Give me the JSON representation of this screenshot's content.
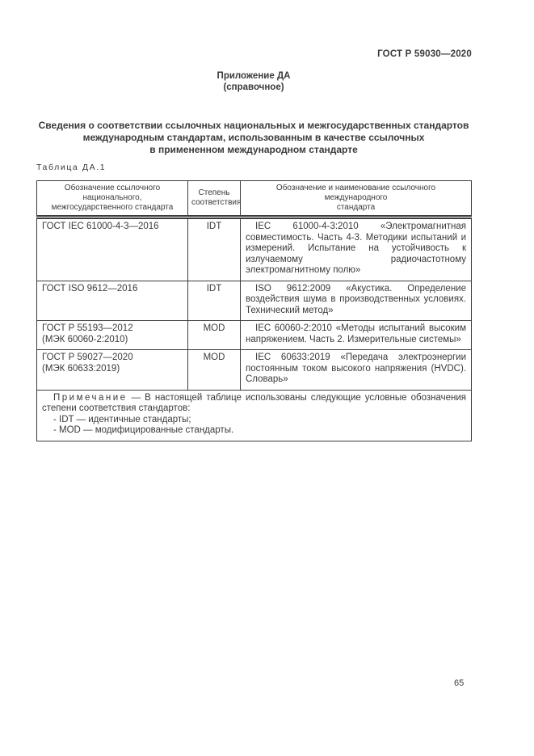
{
  "page": {
    "running_head": "ГОСТ Р 59030—2020",
    "number": "65"
  },
  "appendix": {
    "title": "Приложение ДА",
    "subtitle": "(справочное)"
  },
  "section": {
    "title": "Сведения о соответствии ссылочных национальных и межгосударственных стандартов\nмеждународным стандартам, использованным в качестве ссылочных\nв примененном международном стандарте"
  },
  "table": {
    "label": "Таблица ДА.1",
    "columns": [
      "Обозначение ссылочного национального,\nмежгосударственного стандарта",
      "Степень\nсоответствия",
      "Обозначение и наименование ссылочного международного\nстандарта"
    ],
    "rows": [
      {
        "national": "ГОСТ IEC 61000-4-3—2016",
        "degree": "IDT",
        "international": "IEC 61000-4-3:2010 «Электромагнитная совместимость. Часть 4-3. Методики испытаний и измерений. Испытание на устойчивость к излучаемому радиочастотному электромагнитному полю»"
      },
      {
        "national": "ГОСТ ISO 9612—2016",
        "degree": "IDT",
        "international": "ISO 9612:2009 «Акустика. Определение воздействия шума в производственных условиях. Технический метод»"
      },
      {
        "national": "ГОСТ Р 55193—2012\n(МЭК 60060-2:2010)",
        "degree": "MOD",
        "international": "IEC 60060-2:2010 «Методы испытаний высоким напряжением. Часть 2. Измерительные системы»"
      },
      {
        "national": "ГОСТ Р 59027—2020\n(МЭК 60633:2019)",
        "degree": "MOD",
        "international": "IEC 60633:2019 «Передача электроэнергии постоянным током высокого напряжения (HVDC). Словарь»"
      }
    ],
    "note": {
      "label": "Примечание",
      "text": "— В настоящей таблице использованы следующие условные обозначения степени соответствия стандартов:",
      "items": [
        "- IDT — идентичные стандарты;",
        "- MOD — модифицированные стандарты."
      ]
    }
  },
  "colors": {
    "background": "#ffffff",
    "text": "#3a3a3a",
    "border": "#3c3c3c"
  }
}
